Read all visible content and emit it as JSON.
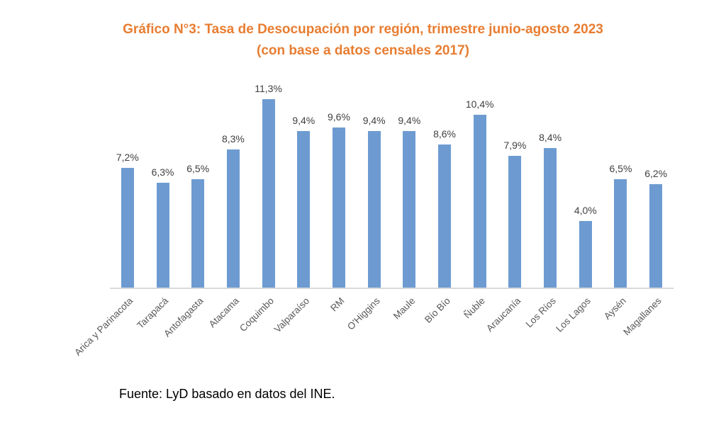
{
  "title": {
    "line1": "Gráfico N°3: Tasa de Desocupación por región, trimestre junio-agosto 2023",
    "line2": "(con base a datos censales 2017)"
  },
  "source_note": "Fuente: LyD basado en datos del INE.",
  "colors": {
    "bar": "#6D9BD1",
    "title": "#E87D31",
    "axis_line": "#D9D9D9",
    "value_label": "#404040",
    "category_label": "#595959"
  },
  "chart_data": {
    "type": "bar",
    "title": "Gráfico N°3: Tasa de Desocupación por región, trimestre junio-agosto 2023",
    "subtitle": "(con base a datos censales 2017)",
    "categories": [
      "Arica y Parinacota",
      "Tarapacá",
      "Antofagasta",
      "Atacama",
      "Coquimbo",
      "Valparaíso",
      "RM",
      "O'Higgins",
      "Maule",
      "Bío Bío",
      "Ñuble",
      "Araucanía",
      "Los Ríos",
      "Los Lagos",
      "Aysén",
      "Magallanes"
    ],
    "values": [
      7.2,
      6.3,
      6.5,
      8.3,
      11.3,
      9.4,
      9.6,
      9.4,
      9.4,
      8.6,
      10.4,
      7.9,
      8.4,
      4.0,
      6.5,
      6.2
    ],
    "value_labels": [
      "7,2%",
      "6,3%",
      "6,5%",
      "8,3%",
      "11,3%",
      "9,4%",
      "9,6%",
      "9,4%",
      "9,4%",
      "8,6%",
      "10,4%",
      "7,9%",
      "8,4%",
      "4,0%",
      "6,5%",
      "6,2%"
    ],
    "unit": "%",
    "xlabel": "",
    "ylabel": "",
    "ylim": [
      0,
      12
    ],
    "grid": false,
    "legend": false,
    "data_labels": true,
    "category_label_rotation_deg": -45,
    "source": "Fuente: LyD basado en datos del INE."
  }
}
